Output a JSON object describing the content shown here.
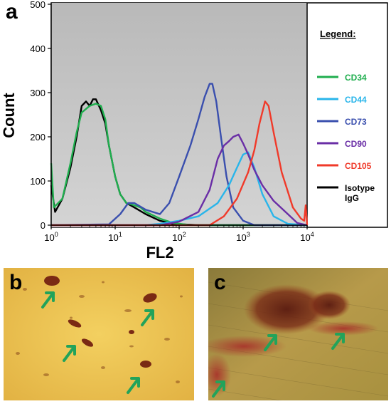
{
  "panels": {
    "a": "a",
    "b": "b",
    "c": "c"
  },
  "chart_data": {
    "type": "line",
    "title": "",
    "xlabel": "FL2",
    "ylabel": "Count",
    "xscale": "log",
    "xlim": [
      1,
      10000
    ],
    "ylim": [
      0,
      500
    ],
    "xticks": [
      {
        "value": 1,
        "base": "10",
        "exp": "0"
      },
      {
        "value": 10,
        "base": "10",
        "exp": "1"
      },
      {
        "value": 100,
        "base": "10",
        "exp": "2"
      },
      {
        "value": 1000,
        "base": "10",
        "exp": "3"
      },
      {
        "value": 10000,
        "base": "10",
        "exp": "4"
      }
    ],
    "yticks": [
      0,
      100,
      200,
      300,
      400,
      500
    ],
    "plot_background": "#c3c3c3",
    "legend": {
      "title": "Legend:",
      "placement": "right",
      "entries": [
        {
          "name": "CD34",
          "color": "#1fae4e"
        },
        {
          "name": "CD44",
          "color": "#29b5ea"
        },
        {
          "name": "CD73",
          "color": "#3a4fae"
        },
        {
          "name": "CD90",
          "color": "#6a2ea6"
        },
        {
          "name": "CD105",
          "color": "#f03a2a"
        },
        {
          "name": "Isotype IgG",
          "color": "#000000"
        }
      ]
    },
    "series": [
      {
        "name": "Isotype IgG",
        "color": "#000000",
        "points": [
          [
            1,
            90
          ],
          [
            1.15,
            30
          ],
          [
            1.5,
            60
          ],
          [
            2,
            130
          ],
          [
            2.5,
            200
          ],
          [
            3,
            270
          ],
          [
            3.5,
            280
          ],
          [
            4,
            270
          ],
          [
            4.5,
            285
          ],
          [
            5,
            285
          ],
          [
            6,
            260
          ],
          [
            7,
            230
          ],
          [
            8,
            180
          ],
          [
            10,
            110
          ],
          [
            12,
            70
          ],
          [
            15,
            50
          ],
          [
            20,
            40
          ],
          [
            30,
            25
          ],
          [
            50,
            10
          ],
          [
            80,
            3
          ],
          [
            200,
            0
          ],
          [
            10000,
            0
          ]
        ]
      },
      {
        "name": "CD34",
        "color": "#1fae4e",
        "points": [
          [
            1,
            140
          ],
          [
            1.1,
            40
          ],
          [
            1.5,
            60
          ],
          [
            2,
            140
          ],
          [
            2.5,
            210
          ],
          [
            3,
            255
          ],
          [
            4,
            270
          ],
          [
            5,
            275
          ],
          [
            6,
            270
          ],
          [
            7,
            240
          ],
          [
            8,
            180
          ],
          [
            10,
            110
          ],
          [
            12,
            70
          ],
          [
            15,
            50
          ],
          [
            20,
            45
          ],
          [
            25,
            40
          ],
          [
            30,
            30
          ],
          [
            50,
            15
          ],
          [
            80,
            5
          ],
          [
            150,
            0
          ],
          [
            10000,
            0
          ]
        ]
      },
      {
        "name": "CD73",
        "color": "#3a4fae",
        "points": [
          [
            1,
            0
          ],
          [
            8,
            2
          ],
          [
            12,
            25
          ],
          [
            16,
            50
          ],
          [
            20,
            50
          ],
          [
            30,
            35
          ],
          [
            50,
            25
          ],
          [
            70,
            50
          ],
          [
            100,
            110
          ],
          [
            150,
            180
          ],
          [
            200,
            240
          ],
          [
            250,
            290
          ],
          [
            300,
            320
          ],
          [
            330,
            320
          ],
          [
            380,
            280
          ],
          [
            450,
            200
          ],
          [
            550,
            110
          ],
          [
            700,
            40
          ],
          [
            1000,
            10
          ],
          [
            1500,
            0
          ],
          [
            10000,
            0
          ]
        ]
      },
      {
        "name": "CD44",
        "color": "#29b5ea",
        "points": [
          [
            1,
            0
          ],
          [
            30,
            0
          ],
          [
            50,
            3
          ],
          [
            100,
            10
          ],
          [
            200,
            20
          ],
          [
            400,
            50
          ],
          [
            600,
            90
          ],
          [
            800,
            130
          ],
          [
            1000,
            160
          ],
          [
            1200,
            165
          ],
          [
            1500,
            130
          ],
          [
            2000,
            70
          ],
          [
            3000,
            20
          ],
          [
            5000,
            3
          ],
          [
            10000,
            0
          ]
        ]
      },
      {
        "name": "CD90",
        "color": "#6a2ea6",
        "points": [
          [
            1,
            0
          ],
          [
            50,
            0
          ],
          [
            100,
            8
          ],
          [
            200,
            30
          ],
          [
            300,
            80
          ],
          [
            400,
            150
          ],
          [
            500,
            180
          ],
          [
            600,
            190
          ],
          [
            700,
            200
          ],
          [
            850,
            205
          ],
          [
            1000,
            185
          ],
          [
            1200,
            160
          ],
          [
            1500,
            125
          ],
          [
            2000,
            90
          ],
          [
            3000,
            55
          ],
          [
            5000,
            25
          ],
          [
            7000,
            5
          ],
          [
            10000,
            0
          ]
        ]
      },
      {
        "name": "CD105",
        "color": "#f03a2a",
        "points": [
          [
            1,
            0
          ],
          [
            300,
            0
          ],
          [
            500,
            20
          ],
          [
            800,
            60
          ],
          [
            1200,
            120
          ],
          [
            1500,
            170
          ],
          [
            1800,
            230
          ],
          [
            2200,
            280
          ],
          [
            2500,
            270
          ],
          [
            3000,
            210
          ],
          [
            4000,
            120
          ],
          [
            6000,
            40
          ],
          [
            8000,
            15
          ],
          [
            9000,
            10
          ],
          [
            9500,
            45
          ],
          [
            10000,
            0
          ]
        ]
      }
    ]
  }
}
